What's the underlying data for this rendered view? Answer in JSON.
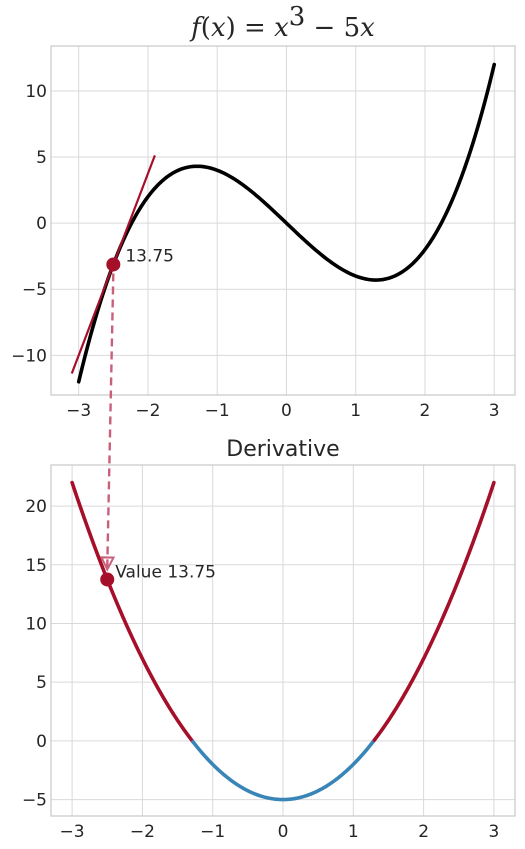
{
  "chart_data": [
    {
      "type": "line",
      "title": "f(x) = x³ − 5x",
      "function": "x^3 - 5x",
      "xlabel": "",
      "ylabel": "",
      "xlim": [
        -3.4,
        3.3
      ],
      "ylim": [
        -13,
        13.4
      ],
      "xticks": [
        -3,
        -2,
        -1,
        0,
        1,
        2,
        3
      ],
      "yticks": [
        -10,
        -5,
        0,
        5,
        10
      ],
      "grid": true,
      "series": [
        {
          "kind": "curve",
          "x_range": [
            -3,
            3
          ],
          "color": "#000000"
        },
        {
          "kind": "tangent",
          "x_range": [
            -3.1,
            -1.9
          ],
          "through_x": -2.5,
          "slope": 13.75,
          "color": "#a50f2a"
        }
      ],
      "highlight_point": {
        "x": -2.5,
        "y": -3.125,
        "label": "13.75",
        "color": "#a50f2a"
      }
    },
    {
      "type": "line",
      "title": "Derivative",
      "function": "3x^2 - 5",
      "xlabel": "",
      "ylabel": "",
      "xlim": [
        -3.3,
        3.3
      ],
      "ylim": [
        -6.4,
        23.5
      ],
      "xticks": [
        -3,
        -2,
        -1,
        0,
        1,
        2,
        3
      ],
      "yticks": [
        -5,
        0,
        5,
        10,
        15,
        20
      ],
      "grid": true,
      "series": [
        {
          "kind": "curve",
          "x_range": [
            -3,
            3
          ],
          "color_positive": "#a50f2a",
          "color_negative": "#3a85b8"
        }
      ],
      "highlight_point": {
        "x": -2.5,
        "y": 13.75,
        "label": "Value 13.75",
        "color": "#a50f2a"
      }
    }
  ],
  "connector": {
    "color": "#c8607a",
    "style": "dashed-arrow"
  }
}
